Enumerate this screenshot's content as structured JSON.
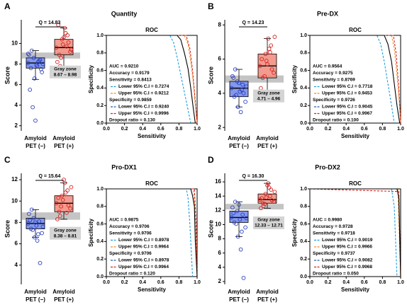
{
  "chart_data": [
    {
      "type": "box",
      "panel_label": "A",
      "panel_title": "Quantity",
      "ylabel": "Score",
      "ylim": [
        1.5,
        12.3
      ],
      "yticks": [
        2,
        4,
        6,
        8,
        10
      ],
      "categories": [
        [
          "Amyloid",
          "PET (−)"
        ],
        [
          "Amyloid",
          "PET (+)"
        ]
      ],
      "q_annotation": "Q = 14.83",
      "gray_zone": {
        "title": "Gray zone",
        "range": [
          8.67,
          8.98
        ],
        "label": "8.67 – 8.98"
      },
      "groups": [
        {
          "color": "#2a3fbf",
          "fill": "#6f86e8",
          "stats": {
            "whisker_low": 6.5,
            "q1": 7.6,
            "median": 8.1,
            "q3": 8.6,
            "whisker_high": 9.3
          },
          "points": [
            8.1,
            7.6,
            8.6,
            7.9,
            8.3,
            7.2,
            8.9,
            9.3,
            6.6,
            7.8,
            8.4,
            8.0,
            5.5,
            3.8,
            2.5,
            8.2,
            7.5,
            9.0
          ]
        },
        {
          "color": "#d62020",
          "fill": "#f08a7a",
          "stats": {
            "whisker_low": 7.8,
            "q1": 8.9,
            "median": 9.6,
            "q3": 10.4,
            "whisker_high": 11.5
          },
          "points": [
            9.6,
            8.9,
            10.4,
            11.5,
            10.8,
            9.2,
            8.2,
            7.8,
            9.9,
            11.0,
            10.1,
            9.4,
            11.8,
            8.6,
            10.6,
            9.7
          ]
        }
      ]
    },
    {
      "type": "line",
      "title": "ROC",
      "xlabel": "Sensitivity",
      "ylabel": "Specificity",
      "xlim": [
        0,
        1
      ],
      "ylim": [
        0,
        1
      ],
      "xticks": [
        {
          "value": 0,
          "label": "0.0"
        },
        {
          "value": 0.2,
          "label": "0.2"
        },
        {
          "value": 0.4,
          "label": "0.4"
        },
        {
          "value": 0.6,
          "label": "0.6"
        },
        {
          "value": 0.8,
          "label": "0.8"
        },
        {
          "value": 1,
          "label": "1.0"
        }
      ],
      "yticks": [
        {
          "value": 0,
          "label": "0.0"
        },
        {
          "value": 0.2,
          "label": "0.2"
        },
        {
          "value": 0.4,
          "label": "0.4"
        },
        {
          "value": 0.6,
          "label": "0.6"
        },
        {
          "value": 0.8,
          "label": "0.8"
        },
        {
          "value": 1,
          "label": "1.0"
        }
      ],
      "series": [
        {
          "color": "#1e9ee0",
          "dash": true,
          "x": [
            0,
            0.7,
            0.74,
            0.78,
            0.82,
            0.86,
            0.9,
            0.93
          ],
          "y": [
            1,
            1,
            0.92,
            0.75,
            0.55,
            0.35,
            0.15,
            0
          ]
        },
        {
          "color": "#f28c1e",
          "dash": true,
          "x": [
            0,
            0.86,
            0.9,
            0.93,
            0.96,
            0.98,
            1
          ],
          "y": [
            1,
            1,
            0.9,
            0.7,
            0.45,
            0.2,
            0
          ]
        },
        {
          "color": "#d62020",
          "dash": true,
          "x": [
            0,
            0.88,
            0.92,
            0.95,
            0.98,
            1
          ],
          "y": [
            1,
            1,
            0.85,
            0.6,
            0.25,
            0
          ]
        },
        {
          "color": "#000000",
          "dash": false,
          "x": [
            0,
            0.78,
            0.82,
            0.86,
            0.9,
            0.93,
            0.96,
            0.98
          ],
          "y": [
            1,
            1,
            0.95,
            0.8,
            0.62,
            0.4,
            0.15,
            0
          ]
        }
      ],
      "stats": [
        {
          "text": "AUC = 0.9210"
        },
        {
          "text": "Accuracy = 0.9179"
        },
        {
          "text": "Sensitivity = 0.8413"
        },
        {
          "text": "Lower 95% C.I = 0.7274",
          "color": "#1e9ee0"
        },
        {
          "text": "Upper 95% C.I = 0.9212",
          "color": "#f28c1e"
        },
        {
          "text": "Specificity = 0.9859"
        },
        {
          "text": "Lower 95% C.I = 0.9240",
          "color": "#2a5caa"
        },
        {
          "text": "Upper 95% C.I = 0.9996",
          "color": "#d62020"
        },
        {
          "text": "Dropout ratio = 0.130"
        }
      ]
    },
    {
      "type": "box",
      "panel_label": "B",
      "panel_title": "Pre-DX",
      "ylabel": "Score",
      "ylim": [
        1.8,
        8.3
      ],
      "yticks": [
        2,
        4,
        6,
        8
      ],
      "categories": [
        [
          "Amyloid",
          "PET (−)"
        ],
        [
          "Amyloid",
          "PET (+)"
        ]
      ],
      "q_annotation": "Q = 14.23",
      "gray_zone": {
        "title": "Gray zone",
        "range": [
          4.71,
          4.96
        ],
        "label": "4.71 – 4.96"
      },
      "groups": [
        {
          "color": "#2a3fbf",
          "fill": "#6f86e8",
          "stats": {
            "whisker_low": 3.2,
            "q1": 3.8,
            "median": 4.3,
            "q3": 4.7,
            "whisker_high": 5.4
          },
          "points": [
            4.3,
            3.8,
            4.7,
            4.1,
            4.5,
            3.5,
            5.0,
            5.4,
            3.2,
            2.9,
            4.0,
            4.4,
            4.9,
            3.9,
            4.6,
            4.2
          ]
        },
        {
          "color": "#d62020",
          "fill": "#f08a7a",
          "stats": {
            "whisker_low": 4.0,
            "q1": 4.9,
            "median": 5.6,
            "q3": 6.3,
            "whisker_high": 7.2
          },
          "points": [
            5.6,
            4.9,
            6.3,
            7.2,
            6.8,
            5.2,
            4.3,
            4.0,
            5.9,
            6.6,
            5.4,
            7.3,
            6.0,
            5.0,
            5.7,
            6.4
          ]
        }
      ]
    },
    {
      "type": "line",
      "title": "ROC",
      "xlabel": "Sensitivity",
      "ylabel": "Specificity",
      "xlim": [
        0,
        1
      ],
      "ylim": [
        0,
        1
      ],
      "xticks": [
        {
          "value": 0,
          "label": "0.0"
        },
        {
          "value": 0.2,
          "label": "0.2"
        },
        {
          "value": 0.4,
          "label": "0.4"
        },
        {
          "value": 0.6,
          "label": "0.6"
        },
        {
          "value": 0.8,
          "label": "0.8"
        },
        {
          "value": 1,
          "label": "1.0"
        }
      ],
      "yticks": [
        {
          "value": 0,
          "label": "0.0"
        },
        {
          "value": 0.2,
          "label": "0.2"
        },
        {
          "value": 0.4,
          "label": "0.4"
        },
        {
          "value": 0.6,
          "label": "0.6"
        },
        {
          "value": 0.8,
          "label": "0.8"
        },
        {
          "value": 1,
          "label": "1.0"
        }
      ],
      "series": [
        {
          "color": "#1e9ee0",
          "dash": true,
          "x": [
            0,
            0.74,
            0.78,
            0.82,
            0.86,
            0.9,
            0.93
          ],
          "y": [
            1,
            1,
            0.9,
            0.7,
            0.45,
            0.2,
            0
          ]
        },
        {
          "color": "#f28c1e",
          "dash": true,
          "x": [
            0,
            0.9,
            0.93,
            0.96,
            0.99,
            1
          ],
          "y": [
            1,
            1,
            0.85,
            0.55,
            0.2,
            0
          ]
        },
        {
          "color": "#d62020",
          "dash": true,
          "x": [
            0,
            0.92,
            0.95,
            0.98,
            1
          ],
          "y": [
            1,
            1,
            0.8,
            0.4,
            0
          ]
        },
        {
          "color": "#000000",
          "dash": false,
          "x": [
            0,
            0.82,
            0.86,
            0.9,
            0.93,
            0.96,
            0.99
          ],
          "y": [
            1,
            1,
            0.9,
            0.7,
            0.45,
            0.2,
            0
          ]
        }
      ],
      "stats": [
        {
          "text": "AUC = 0.9564"
        },
        {
          "text": "Accuracy = 0.9275"
        },
        {
          "text": "Sensitivity = 0.8769"
        },
        {
          "text": "Lower 95% C.I = 0.7718",
          "color": "#1e9ee0"
        },
        {
          "text": "Upper 95% C.I = 0.9453",
          "color": "#f28c1e"
        },
        {
          "text": "Specificity = 0.9726"
        },
        {
          "text": "Lower 95% C.I = 0.9045",
          "color": "#2a5caa"
        },
        {
          "text": "Upper 95% C.I = 0.9967",
          "color": "#d62020"
        },
        {
          "text": "Dropout ratio = 0.100"
        }
      ]
    },
    {
      "type": "box",
      "panel_label": "C",
      "panel_title": "Pro-DX1",
      "ylabel": "Score",
      "ylim": [
        2.2,
        12.6
      ],
      "yticks": [
        4,
        6,
        8,
        10,
        12
      ],
      "categories": [
        [
          "Amyloid",
          "PET (−)"
        ],
        [
          "Amyloid",
          "PET (+)"
        ]
      ],
      "q_annotation": "Q = 15.64",
      "gray_zone": {
        "title": "Gray zone",
        "range": [
          8.38,
          8.81
        ],
        "label": "8.38 – 8.81"
      },
      "groups": [
        {
          "color": "#2a3fbf",
          "fill": "#6f86e8",
          "stats": {
            "whisker_low": 6.6,
            "q1": 7.4,
            "median": 7.9,
            "q3": 8.4,
            "whisker_high": 9.2
          },
          "points": [
            7.9,
            7.4,
            8.4,
            7.7,
            8.1,
            7.0,
            8.8,
            9.2,
            6.6,
            6.3,
            4.2,
            7.6,
            8.2,
            7.3,
            8.0,
            6.9
          ]
        },
        {
          "color": "#d62020",
          "fill": "#f08a7a",
          "stats": {
            "whisker_low": 8.3,
            "q1": 9.0,
            "median": 9.8,
            "q3": 10.5,
            "whisker_high": 11.7
          },
          "points": [
            9.8,
            9.0,
            10.5,
            11.7,
            11.0,
            9.3,
            8.3,
            8.6,
            10.1,
            10.8,
            9.6,
            11.3,
            10.3,
            9.5,
            12.0,
            8.9
          ]
        }
      ]
    },
    {
      "type": "line",
      "title": "ROC",
      "xlabel": "Sensitivity",
      "ylabel": "Specificity",
      "xlim": [
        0,
        1
      ],
      "ylim": [
        0,
        1
      ],
      "xticks": [
        {
          "value": 0,
          "label": "0.0"
        },
        {
          "value": 0.2,
          "label": "0.2"
        },
        {
          "value": 0.4,
          "label": "0.4"
        },
        {
          "value": 0.6,
          "label": "0.6"
        },
        {
          "value": 0.8,
          "label": "0.8"
        },
        {
          "value": 1,
          "label": "1.0"
        }
      ],
      "yticks": [
        {
          "value": 0,
          "label": "0.0"
        },
        {
          "value": 0.2,
          "label": "0.2"
        },
        {
          "value": 0.4,
          "label": "0.4"
        },
        {
          "value": 0.6,
          "label": "0.6"
        },
        {
          "value": 0.8,
          "label": "0.8"
        },
        {
          "value": 1,
          "label": "1.0"
        }
      ],
      "series": [
        {
          "color": "#1e9ee0",
          "dash": true,
          "x": [
            0,
            0.88,
            0.9,
            0.92,
            0.95
          ],
          "y": [
            1,
            1,
            0.9,
            0.6,
            0
          ]
        },
        {
          "color": "#f28c1e",
          "dash": true,
          "x": [
            0,
            0.96,
            0.98,
            1
          ],
          "y": [
            1,
            1,
            0.7,
            0
          ]
        },
        {
          "color": "#d62020",
          "dash": true,
          "x": [
            0,
            0.97,
            0.99,
            1
          ],
          "y": [
            1,
            1,
            0.6,
            0
          ]
        },
        {
          "color": "#000000",
          "dash": false,
          "x": [
            0,
            0.93,
            0.95,
            0.97,
            0.98,
            1
          ],
          "y": [
            1,
            1,
            0.92,
            0.8,
            0.4,
            0
          ]
        }
      ],
      "stats": [
        {
          "text": "AUC = 0.9875"
        },
        {
          "text": "Accuracy = 0.9706"
        },
        {
          "text": "Sensitivity = 0.9706"
        },
        {
          "text": "Lower 95% C.I = 0.8978",
          "color": "#1e9ee0"
        },
        {
          "text": "Upper 95% C.I = 0.9964",
          "color": "#f28c1e"
        },
        {
          "text": "Specificity = 0.9706"
        },
        {
          "text": "Lower 95% C.I = 0.8978",
          "color": "#2a5caa"
        },
        {
          "text": "Upper 95% C.I = 0.9964",
          "color": "#d62020"
        },
        {
          "text": "Dropout ratio = 0.120"
        }
      ]
    },
    {
      "type": "box",
      "panel_label": "D",
      "panel_title": "Pro-DX2",
      "ylabel": "Score",
      "ylim": [
        1.6,
        17.2
      ],
      "yticks": [
        2,
        4,
        6,
        8,
        10,
        12,
        14,
        16
      ],
      "categories": [
        [
          "Amyloid",
          "PET (−)"
        ],
        [
          "Amyloid",
          "PET (+)"
        ]
      ],
      "q_annotation": "Q = 16.30",
      "gray_zone": {
        "title": "Gray zone",
        "range": [
          12.33,
          12.71
        ],
        "label": "12.33 – 12.71"
      },
      "groups": [
        {
          "color": "#2a3fbf",
          "fill": "#6f86e8",
          "stats": {
            "whisker_low": 8.3,
            "q1": 10.3,
            "median": 11.0,
            "q3": 11.9,
            "whisker_high": 13.2
          },
          "points": [
            11.0,
            10.3,
            11.9,
            10.7,
            11.4,
            9.6,
            12.4,
            13.2,
            8.3,
            6.5,
            2.5,
            10.9,
            11.6,
            10.1,
            12.8,
            9.0
          ]
        },
        {
          "color": "#d62020",
          "fill": "#f08a7a",
          "stats": {
            "whisker_low": 12.3,
            "q1": 13.0,
            "median": 13.5,
            "q3": 14.3,
            "whisker_high": 15.8
          },
          "points": [
            13.5,
            13.0,
            14.3,
            15.8,
            14.9,
            13.2,
            12.3,
            12.6,
            13.8,
            15.2,
            13.4,
            14.6,
            13.7,
            12.9,
            15.5,
            14.0
          ]
        }
      ]
    },
    {
      "type": "line",
      "title": "ROC",
      "xlabel": "Sensitivity",
      "ylabel": "Specificity",
      "xlim": [
        0,
        1
      ],
      "ylim": [
        0,
        1
      ],
      "xticks": [
        {
          "value": 0,
          "label": "0.0"
        },
        {
          "value": 0.2,
          "label": "0.2"
        },
        {
          "value": 0.4,
          "label": "0.4"
        },
        {
          "value": 0.6,
          "label": "0.6"
        },
        {
          "value": 0.8,
          "label": "0.8"
        },
        {
          "value": 1,
          "label": "1.0"
        }
      ],
      "yticks": [
        {
          "value": 0,
          "label": "0.0"
        },
        {
          "value": 0.2,
          "label": "0.2"
        },
        {
          "value": 0.4,
          "label": "0.4"
        },
        {
          "value": 0.6,
          "label": "0.6"
        },
        {
          "value": 0.8,
          "label": "0.8"
        },
        {
          "value": 1,
          "label": "1.0"
        }
      ],
      "series": [
        {
          "color": "#1e9ee0",
          "dash": true,
          "x": [
            0,
            0.9,
            0.93,
            0.96
          ],
          "y": [
            1,
            1,
            0.8,
            0
          ]
        },
        {
          "color": "#f28c1e",
          "dash": true,
          "x": [
            0,
            0.97,
            1
          ],
          "y": [
            1,
            1,
            0
          ]
        },
        {
          "color": "#d62020",
          "dash": true,
          "x": [
            0,
            0.98,
            1
          ],
          "y": [
            1,
            0.97,
            0
          ]
        },
        {
          "color": "#000000",
          "dash": false,
          "x": [
            0,
            0.96,
            0.98,
            1
          ],
          "y": [
            1,
            1,
            0.9,
            0
          ]
        }
      ],
      "stats": [
        {
          "text": "AUC = 0.9980"
        },
        {
          "text": "Accuracy = 0.9728"
        },
        {
          "text": "Sensitivity = 0.9718"
        },
        {
          "text": "Lower 95% C.I = 0.9019",
          "color": "#1e9ee0"
        },
        {
          "text": "Upper 95% C.I = 0.9966",
          "color": "#f28c1e"
        },
        {
          "text": "Specificity = 0.9737"
        },
        {
          "text": "Lower 95% C.I = 0.9082",
          "color": "#2a5caa"
        },
        {
          "text": "Upper 95% C.I = 0.9968",
          "color": "#d62020"
        },
        {
          "text": "Dropout ratio = 0.050"
        }
      ]
    }
  ]
}
